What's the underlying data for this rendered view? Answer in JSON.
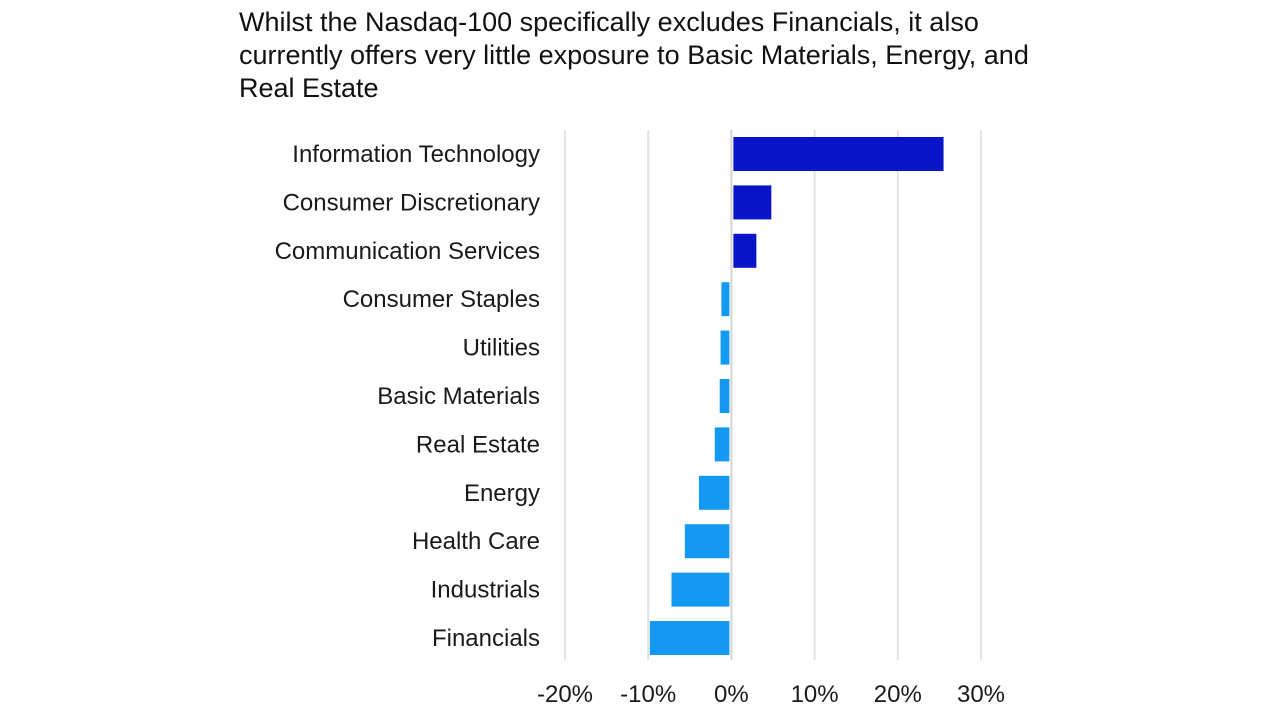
{
  "title": "Whilst the Nasdaq-100 specifically excludes Financials, it also currently offers very little exposure to Basic Materials, Energy, and Real Estate",
  "chart_data": {
    "type": "bar",
    "orientation": "horizontal",
    "title": "Whilst the Nasdaq-100 specifically excludes Financials, it also currently offers very little exposure to Basic Materials, Energy, and Real Estate",
    "xlabel": "",
    "ylabel": "",
    "categories": [
      "Information Technology",
      "Consumer Discretionary",
      "Communication Services",
      "Consumer Staples",
      "Utilities",
      "Basic Materials",
      "Real Estate",
      "Energy",
      "Health Care",
      "Industrials",
      "Financials"
    ],
    "values": [
      25.5,
      4.8,
      3.0,
      -1.2,
      -1.3,
      -1.4,
      -2.0,
      -3.9,
      -5.6,
      -7.2,
      -9.8
    ],
    "xlim": [
      -20,
      30
    ],
    "xticks": [
      -20,
      -10,
      0,
      10,
      20,
      30
    ],
    "xtick_labels": [
      "-20%",
      "-10%",
      "0%",
      "10%",
      "20%",
      "30%"
    ],
    "grid": true,
    "colors": {
      "positive": "#0a14c8",
      "negative": "#1399f2",
      "grid": "#e2e2e2",
      "zero_line": "#d4d4d4"
    }
  }
}
